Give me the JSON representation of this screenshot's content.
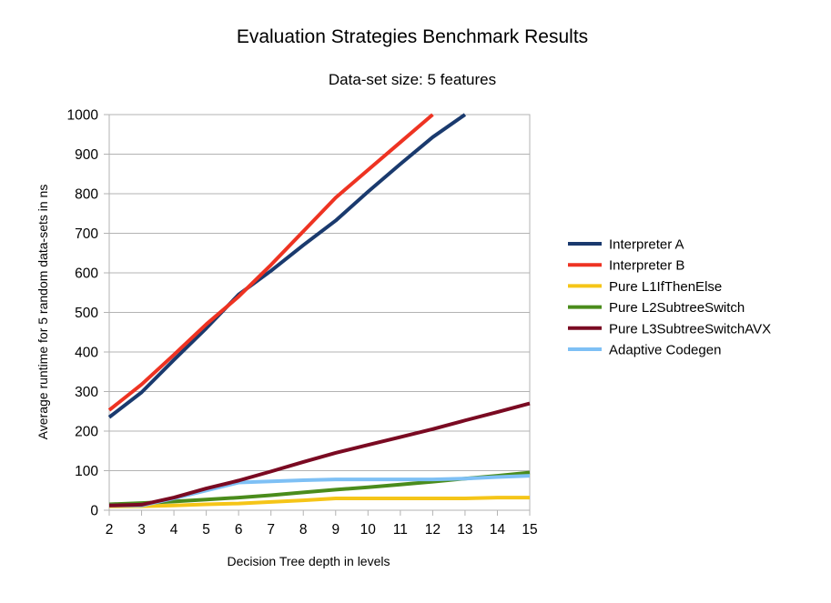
{
  "chart_data": {
    "type": "line",
    "title": "Evaluation Strategies Benchmark Results",
    "subtitle": "Data-set size: 5 features",
    "xlabel": "Decision Tree depth in levels",
    "ylabel": "Average runtime for 5 random data-sets in ns",
    "xlim": [
      2,
      15
    ],
    "ylim": [
      0,
      1000
    ],
    "x_ticks": [
      "2",
      "3",
      "4",
      "5",
      "6",
      "7",
      "8",
      "9",
      "10",
      "11",
      "12",
      "13",
      "14",
      "15"
    ],
    "y_ticks": [
      "0",
      "100",
      "200",
      "300",
      "400",
      "500",
      "600",
      "700",
      "800",
      "900",
      "1000"
    ],
    "grid": "horizontal",
    "legend_position": "right",
    "series": [
      {
        "name": "Interpreter A",
        "color": "#1a3a6e",
        "points": [
          [
            2,
            235
          ],
          [
            3,
            298
          ],
          [
            4,
            380
          ],
          [
            5,
            460
          ],
          [
            6,
            545
          ],
          [
            7,
            605
          ],
          [
            8,
            670
          ],
          [
            9,
            732
          ],
          [
            10,
            805
          ],
          [
            11,
            875
          ],
          [
            12,
            943
          ],
          [
            13,
            1000
          ]
        ]
      },
      {
        "name": "Interpreter B",
        "color": "#ee3322",
        "points": [
          [
            2,
            253
          ],
          [
            3,
            318
          ],
          [
            4,
            393
          ],
          [
            5,
            470
          ],
          [
            6,
            540
          ],
          [
            7,
            620
          ],
          [
            8,
            705
          ],
          [
            9,
            790
          ],
          [
            10,
            860
          ],
          [
            11,
            930
          ],
          [
            12,
            1000
          ]
        ]
      },
      {
        "name": "Pure L1IfThenElse",
        "color": "#f5c518",
        "points": [
          [
            2,
            10
          ],
          [
            3,
            10
          ],
          [
            4,
            12
          ],
          [
            5,
            15
          ],
          [
            6,
            17
          ],
          [
            7,
            21
          ],
          [
            8,
            25
          ],
          [
            9,
            30
          ],
          [
            10,
            30
          ],
          [
            11,
            30
          ],
          [
            12,
            30
          ],
          [
            13,
            30
          ],
          [
            14,
            32
          ],
          [
            15,
            32
          ]
        ]
      },
      {
        "name": "Pure L2SubtreeSwitch",
        "color": "#4a8c1c",
        "points": [
          [
            2,
            15
          ],
          [
            3,
            18
          ],
          [
            4,
            22
          ],
          [
            5,
            27
          ],
          [
            6,
            32
          ],
          [
            7,
            38
          ],
          [
            8,
            45
          ],
          [
            9,
            52
          ],
          [
            10,
            58
          ],
          [
            11,
            65
          ],
          [
            12,
            72
          ],
          [
            13,
            80
          ],
          [
            14,
            87
          ],
          [
            15,
            95
          ]
        ]
      },
      {
        "name": "Pure L3SubtreeSwitchAVX",
        "color": "#7a0a22",
        "points": [
          [
            2,
            12
          ],
          [
            3,
            14
          ],
          [
            4,
            32
          ],
          [
            5,
            55
          ],
          [
            6,
            75
          ],
          [
            7,
            98
          ],
          [
            8,
            122
          ],
          [
            9,
            145
          ],
          [
            10,
            165
          ],
          [
            11,
            185
          ],
          [
            12,
            205
          ],
          [
            13,
            227
          ],
          [
            14,
            248
          ],
          [
            15,
            270
          ]
        ]
      },
      {
        "name": "Adaptive Codegen",
        "color": "#7ec0f5",
        "points": [
          [
            2,
            12
          ],
          [
            3,
            12
          ],
          [
            4,
            30
          ],
          [
            5,
            50
          ],
          [
            6,
            70
          ],
          [
            7,
            73
          ],
          [
            8,
            76
          ],
          [
            9,
            78
          ],
          [
            10,
            78
          ],
          [
            11,
            78
          ],
          [
            12,
            78
          ],
          [
            13,
            80
          ],
          [
            14,
            84
          ],
          [
            15,
            87
          ]
        ]
      }
    ]
  }
}
